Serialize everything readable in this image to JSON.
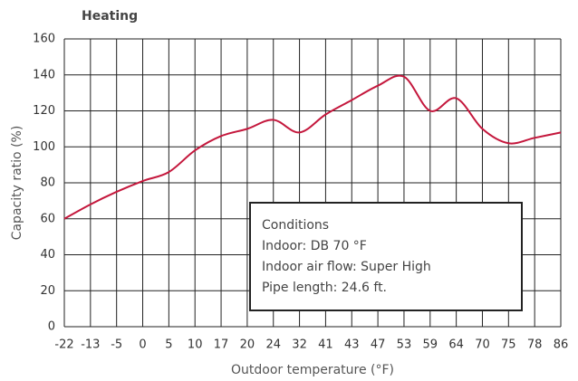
{
  "chart_data": {
    "type": "line",
    "title": "Heating",
    "xlabel": "Outdoor temperature (°F)",
    "ylabel": "Capacity ratio (%)",
    "categories": [
      "-22",
      "-13",
      "-5",
      "0",
      "5",
      "10",
      "17",
      "20",
      "24",
      "32",
      "41",
      "43",
      "47",
      "53",
      "59",
      "64",
      "70",
      "75",
      "78",
      "86"
    ],
    "series": [
      {
        "name": "Heating",
        "color": "#c4173c",
        "values": [
          60,
          68,
          75,
          81,
          86,
          98,
          106,
          110,
          115,
          108,
          118,
          126,
          134,
          139,
          120,
          127,
          110,
          102,
          105,
          108
        ]
      }
    ],
    "ylim": [
      0,
      160
    ],
    "yticks": [
      0,
      20,
      40,
      60,
      80,
      100,
      120,
      140,
      160
    ],
    "grid": true,
    "annotation": [
      "Conditions",
      "Indoor: DB 70 °F",
      "Indoor air flow: Super High",
      "Pipe length: 24.6 ft."
    ]
  }
}
